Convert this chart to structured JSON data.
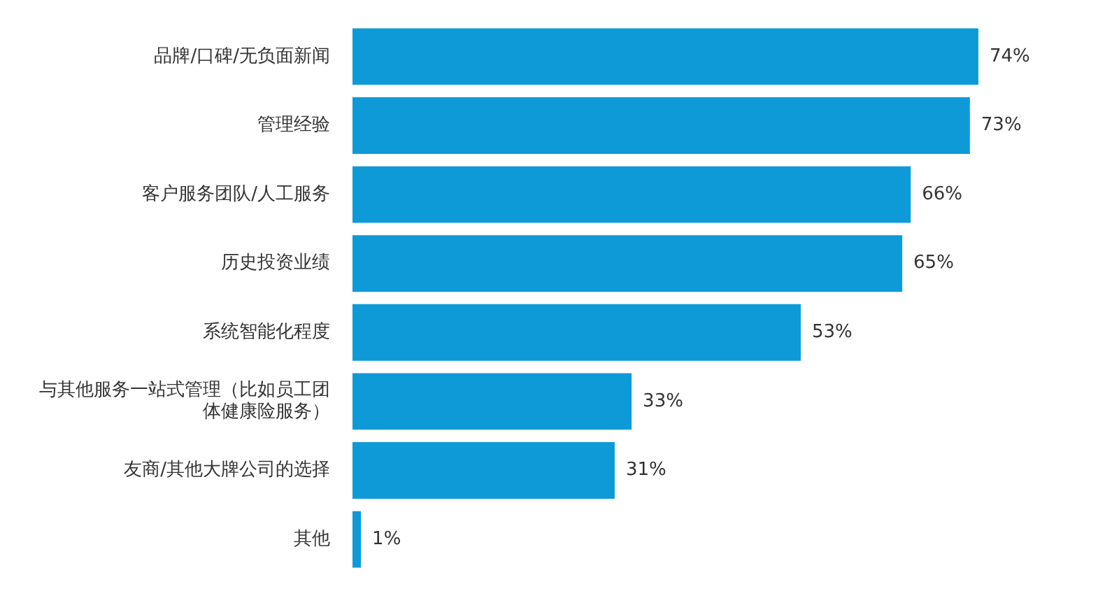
{
  "chart_data": {
    "type": "bar",
    "orientation": "horizontal",
    "categories": [
      "品牌/口碑/无负面新闻",
      "管理经验",
      "客户服务团队/人工服务",
      "历史投资业绩",
      "系统智能化程度",
      "与其他服务一站式管理（比如员工团体健康险服务）",
      "友商/其他大牌公司的选择",
      "其他"
    ],
    "values": [
      74,
      73,
      66,
      65,
      53,
      33,
      31,
      1
    ],
    "value_labels": [
      "74%",
      "73%",
      "66%",
      "65%",
      "53%",
      "33%",
      "31%",
      "1%"
    ],
    "color": "#0e9ad7",
    "legend": false
  }
}
